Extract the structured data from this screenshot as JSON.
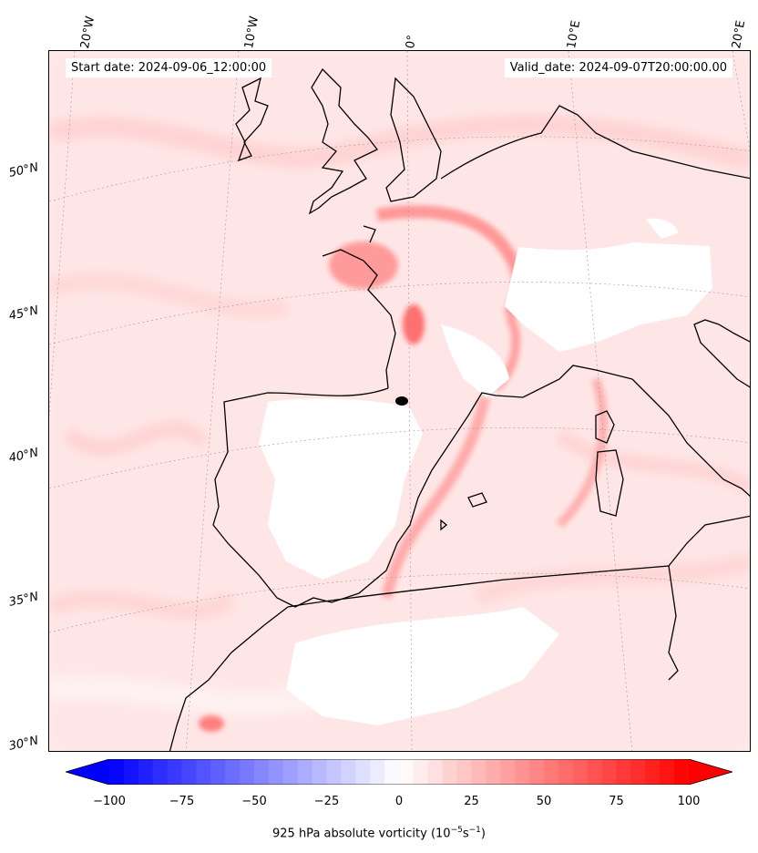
{
  "header": {
    "start_date": "Start date: 2024-09-06_12:00:00",
    "valid_date": "Valid_date: 2024-09-07T20:00:00.00"
  },
  "longitude_labels": [
    "20°W",
    "10°W",
    "0°",
    "10°E",
    "20°E"
  ],
  "latitude_labels": [
    "50°N",
    "45°N",
    "40°N",
    "35°N",
    "30°N"
  ],
  "colorbar": {
    "label": "925 hPa absolute vorticity (10",
    "label_exp1": "−5",
    "label_mid": "s",
    "label_exp2": "−1",
    "label_end": ")",
    "ticks": [
      "−100",
      "−75",
      "−50",
      "−25",
      "0",
      "25",
      "50",
      "75",
      "100"
    ],
    "min": -100,
    "max": 100,
    "cmap": "bwr",
    "extend": "both"
  },
  "colors": {
    "background_field": "#ffeaea",
    "high_vorticity": "#ff7a7a",
    "masked_terrain": "#ffffff",
    "coastline": "#000000",
    "marker": "#000000"
  }
}
